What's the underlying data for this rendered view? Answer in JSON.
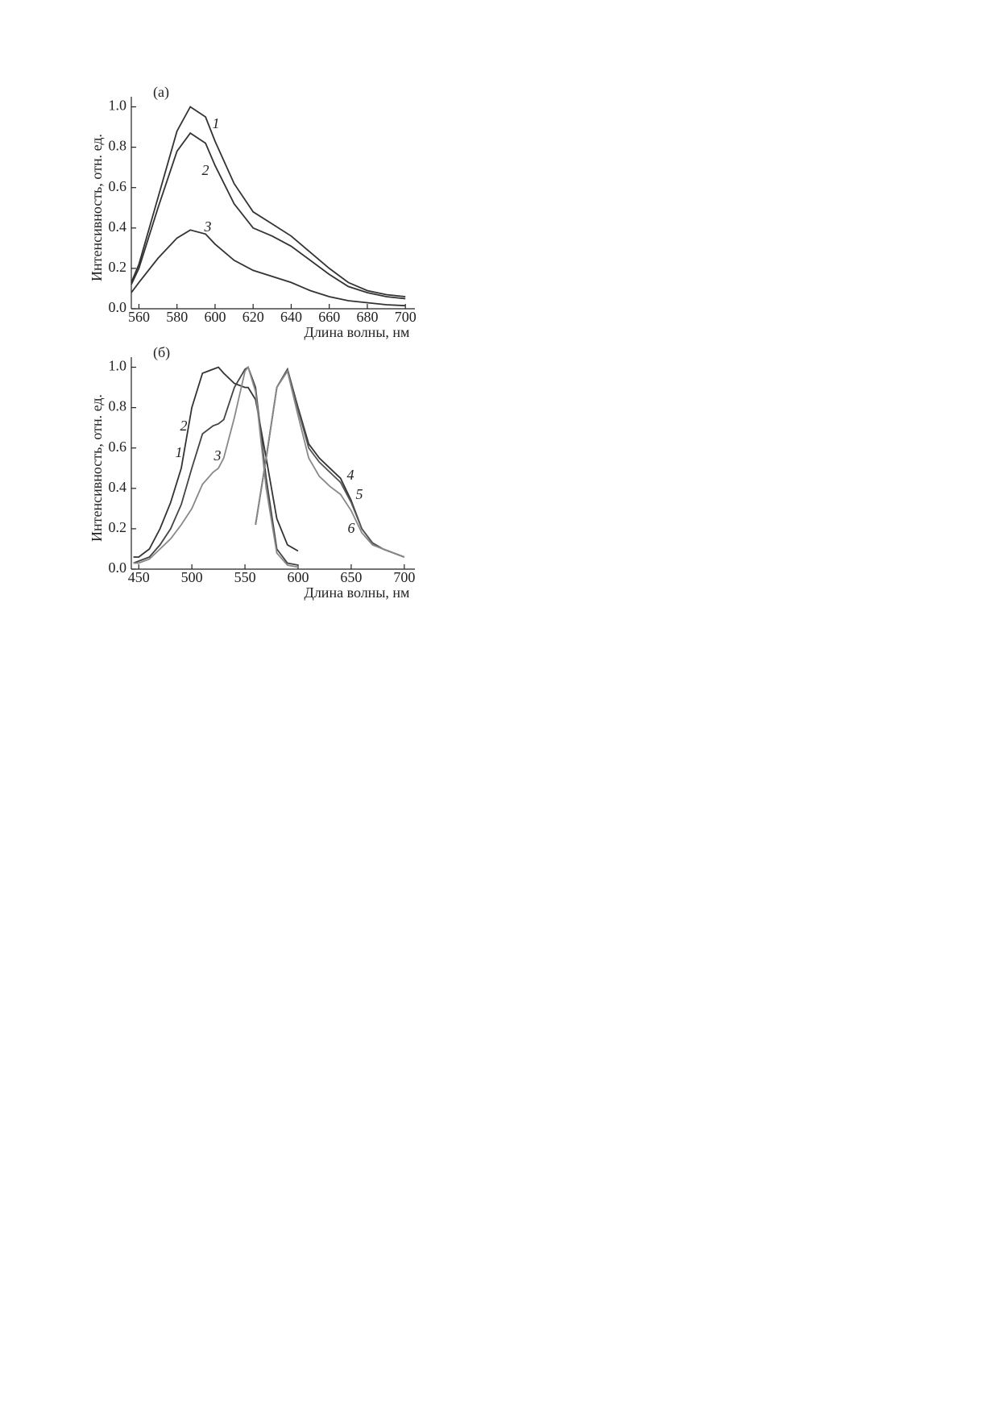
{
  "chart_data": [
    {
      "type": "line",
      "title": "(а)",
      "xlabel": "Длина волны, нм",
      "ylabel": "Интенсивность, отн. ед.",
      "x": [
        556,
        560,
        570,
        580,
        587,
        595,
        600,
        610,
        620,
        630,
        640,
        650,
        660,
        670,
        680,
        690,
        700
      ],
      "series": [
        {
          "name": "1",
          "color": "#333333",
          "values": [
            0.13,
            0.22,
            0.55,
            0.88,
            1.0,
            0.95,
            0.83,
            0.62,
            0.48,
            0.42,
            0.36,
            0.28,
            0.2,
            0.13,
            0.09,
            0.07,
            0.06
          ]
        },
        {
          "name": "2",
          "color": "#333333",
          "values": [
            0.12,
            0.2,
            0.5,
            0.78,
            0.87,
            0.82,
            0.71,
            0.52,
            0.4,
            0.36,
            0.31,
            0.24,
            0.17,
            0.11,
            0.08,
            0.06,
            0.05
          ]
        },
        {
          "name": "3",
          "color": "#333333",
          "values": [
            0.08,
            0.13,
            0.25,
            0.35,
            0.39,
            0.37,
            0.32,
            0.24,
            0.19,
            0.16,
            0.13,
            0.09,
            0.06,
            0.04,
            0.03,
            0.02,
            0.015
          ]
        }
      ],
      "xlim": [
        556,
        705
      ],
      "xticks": [
        560,
        580,
        600,
        620,
        640,
        660,
        680,
        700
      ],
      "ylim": [
        0,
        1.05
      ],
      "yticks": [
        {
          "value": 0,
          "label": "0.0"
        },
        0.2,
        0.4,
        0.6,
        0.8,
        {
          "value": 1,
          "label": "1.0"
        }
      ]
    },
    {
      "type": "line",
      "title": "(б)",
      "xlabel": "Длина волны, нм",
      "ylabel": "Интенсивность, отн. ед.",
      "x": [
        445,
        450,
        460,
        470,
        480,
        490,
        500,
        510,
        520,
        525,
        530,
        540,
        550,
        553,
        560,
        570,
        580,
        590,
        600,
        610,
        620,
        630,
        640,
        650,
        660,
        670,
        680,
        690,
        700
      ],
      "series": [
        {
          "name": "1",
          "color": "#333333",
          "values": [
            0.06,
            0.06,
            0.1,
            0.2,
            0.33,
            0.5,
            0.8,
            0.97,
            0.99,
            1.0,
            0.97,
            0.92,
            0.9,
            0.9,
            0.84,
            0.55,
            0.25,
            0.12,
            0.09,
            null,
            null,
            null,
            null,
            null,
            null,
            null,
            null,
            null,
            null
          ]
        },
        {
          "name": "2",
          "color": "#444444",
          "values": [
            0.03,
            0.04,
            0.06,
            0.12,
            0.2,
            0.32,
            0.5,
            0.67,
            0.71,
            0.72,
            0.74,
            0.9,
            0.99,
            1.0,
            0.9,
            0.45,
            0.1,
            0.03,
            0.02,
            null,
            null,
            null,
            null,
            null,
            null,
            null,
            null,
            null,
            null
          ]
        },
        {
          "name": "3",
          "color": "#888888",
          "values": [
            0.03,
            0.03,
            0.05,
            0.1,
            0.15,
            0.22,
            0.3,
            0.42,
            0.48,
            0.5,
            0.55,
            0.75,
            0.98,
            1.0,
            0.88,
            0.4,
            0.08,
            0.02,
            0.01,
            null,
            null,
            null,
            null,
            null,
            null,
            null,
            null,
            null,
            null
          ]
        },
        {
          "name": "4",
          "color": "#333333",
          "values": [
            null,
            null,
            null,
            null,
            null,
            null,
            null,
            null,
            null,
            null,
            null,
            null,
            null,
            null,
            0.22,
            0.55,
            0.9,
            0.99,
            0.8,
            0.62,
            0.55,
            0.5,
            0.45,
            0.34,
            0.2,
            0.13,
            0.1,
            0.08,
            0.06
          ]
        },
        {
          "name": "5",
          "color": "#555555",
          "values": [
            null,
            null,
            null,
            null,
            null,
            null,
            null,
            null,
            null,
            null,
            null,
            null,
            null,
            null,
            0.22,
            0.55,
            0.9,
            0.99,
            0.79,
            0.6,
            0.53,
            0.48,
            0.43,
            0.33,
            0.2,
            0.13,
            0.1,
            0.08,
            0.06
          ]
        },
        {
          "name": "6",
          "color": "#888888",
          "values": [
            null,
            null,
            null,
            null,
            null,
            null,
            null,
            null,
            null,
            null,
            null,
            null,
            null,
            null,
            0.22,
            0.55,
            0.9,
            0.98,
            0.76,
            0.55,
            0.46,
            0.41,
            0.37,
            0.29,
            0.18,
            0.12,
            0.1,
            0.08,
            0.06
          ]
        }
      ],
      "xlim": [
        443,
        710
      ],
      "xticks": [
        450,
        500,
        550,
        600,
        650,
        700
      ],
      "ylim": [
        0,
        1.05
      ],
      "yticks": [
        {
          "value": 0,
          "label": "0.0"
        },
        0.2,
        0.4,
        0.6,
        0.8,
        {
          "value": 1,
          "label": "1.0"
        }
      ]
    }
  ]
}
